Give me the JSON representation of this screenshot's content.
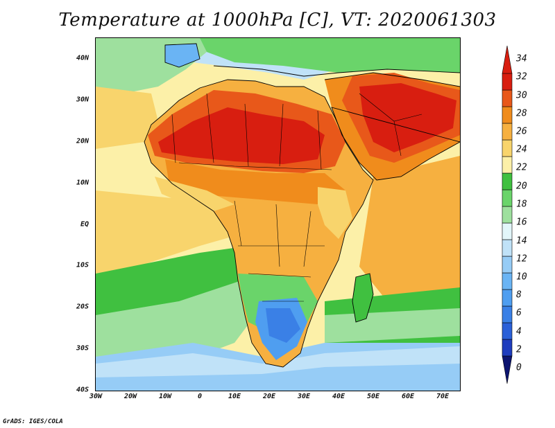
{
  "title": "Temperature at 1000hPa [C], VT: 2020061303",
  "credit": "GrADS: IGES/COLA",
  "map": {
    "lat_range": [
      -40,
      45
    ],
    "lon_range": [
      -30,
      75
    ],
    "lat_ticks": [
      "40N",
      "30N",
      "20N",
      "10N",
      "EQ",
      "10S",
      "20S",
      "30S",
      "40S"
    ],
    "lon_ticks": [
      "30W",
      "20W",
      "10W",
      "0",
      "10E",
      "20E",
      "30E",
      "40E",
      "50E",
      "60E",
      "70E"
    ],
    "lat_tick_values": [
      40,
      30,
      20,
      10,
      0,
      -10,
      -20,
      -30,
      -40
    ],
    "lon_tick_values": [
      -30,
      -20,
      -10,
      0,
      10,
      20,
      30,
      40,
      50,
      60,
      70
    ]
  },
  "colorbar": {
    "labels": [
      "34",
      "32",
      "30",
      "28",
      "26",
      "24",
      "22",
      "20",
      "18",
      "16",
      "14",
      "12",
      "10",
      "8",
      "6",
      "4",
      "2",
      "0"
    ],
    "values": [
      0,
      2,
      4,
      6,
      8,
      10,
      12,
      14,
      16,
      18,
      20,
      22,
      24,
      26,
      28,
      30,
      32,
      34
    ],
    "colors": [
      "#0c1470",
      "#1e3cbe",
      "#2a60d8",
      "#3a80e6",
      "#4f9ef0",
      "#6ab4f4",
      "#96ccf6",
      "#c0e2f8",
      "#e2f6fa",
      "#9ee09e",
      "#6ad46a",
      "#40c040",
      "#fcf0a8",
      "#f8d46c",
      "#f6b040",
      "#f08c1c",
      "#e8581a",
      "#d81e10",
      "#d81e10"
    ]
  },
  "colors": {
    "ocean_north": "#e2f6fa",
    "ocean_south": "#96ccf6"
  }
}
